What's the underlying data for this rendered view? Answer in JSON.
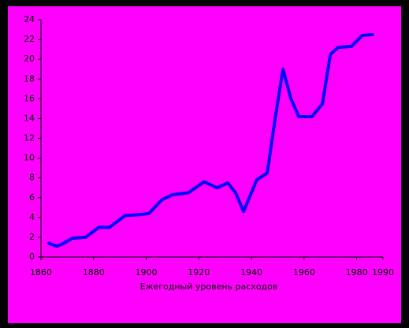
{
  "chart_data": {
    "type": "line",
    "xlabel": "Ежегодный уровень расходов",
    "x": [
      1863,
      1866,
      1868,
      1872,
      1877,
      1882,
      1886,
      1892,
      1898,
      1901,
      1906,
      1910,
      1916,
      1922,
      1927,
      1931,
      1934,
      1937,
      1942,
      1946,
      1949,
      1952,
      1955,
      1958,
      1963,
      1967,
      1970,
      1973,
      1978,
      1982,
      1986
    ],
    "series": [
      {
        "color": "#0000ff",
        "values": [
          1.4,
          1.1,
          1.3,
          1.9,
          2.0,
          3.0,
          3.0,
          4.2,
          4.3,
          4.4,
          5.8,
          6.3,
          6.5,
          7.6,
          7.0,
          7.5,
          6.5,
          4.6,
          7.8,
          8.5,
          14,
          19,
          16,
          14.2,
          14.2,
          15.5,
          20.5,
          21.2,
          21.3,
          22.4,
          22.5
        ]
      }
    ],
    "xlim": [
      1860,
      1990
    ],
    "xticks": [
      1860,
      1880,
      1900,
      1920,
      1940,
      1960,
      1980,
      1990
    ],
    "ylim": [
      0,
      24
    ],
    "yticks": [
      0,
      2,
      4,
      6,
      8,
      10,
      12,
      14,
      16,
      18,
      20,
      22,
      24
    ]
  }
}
